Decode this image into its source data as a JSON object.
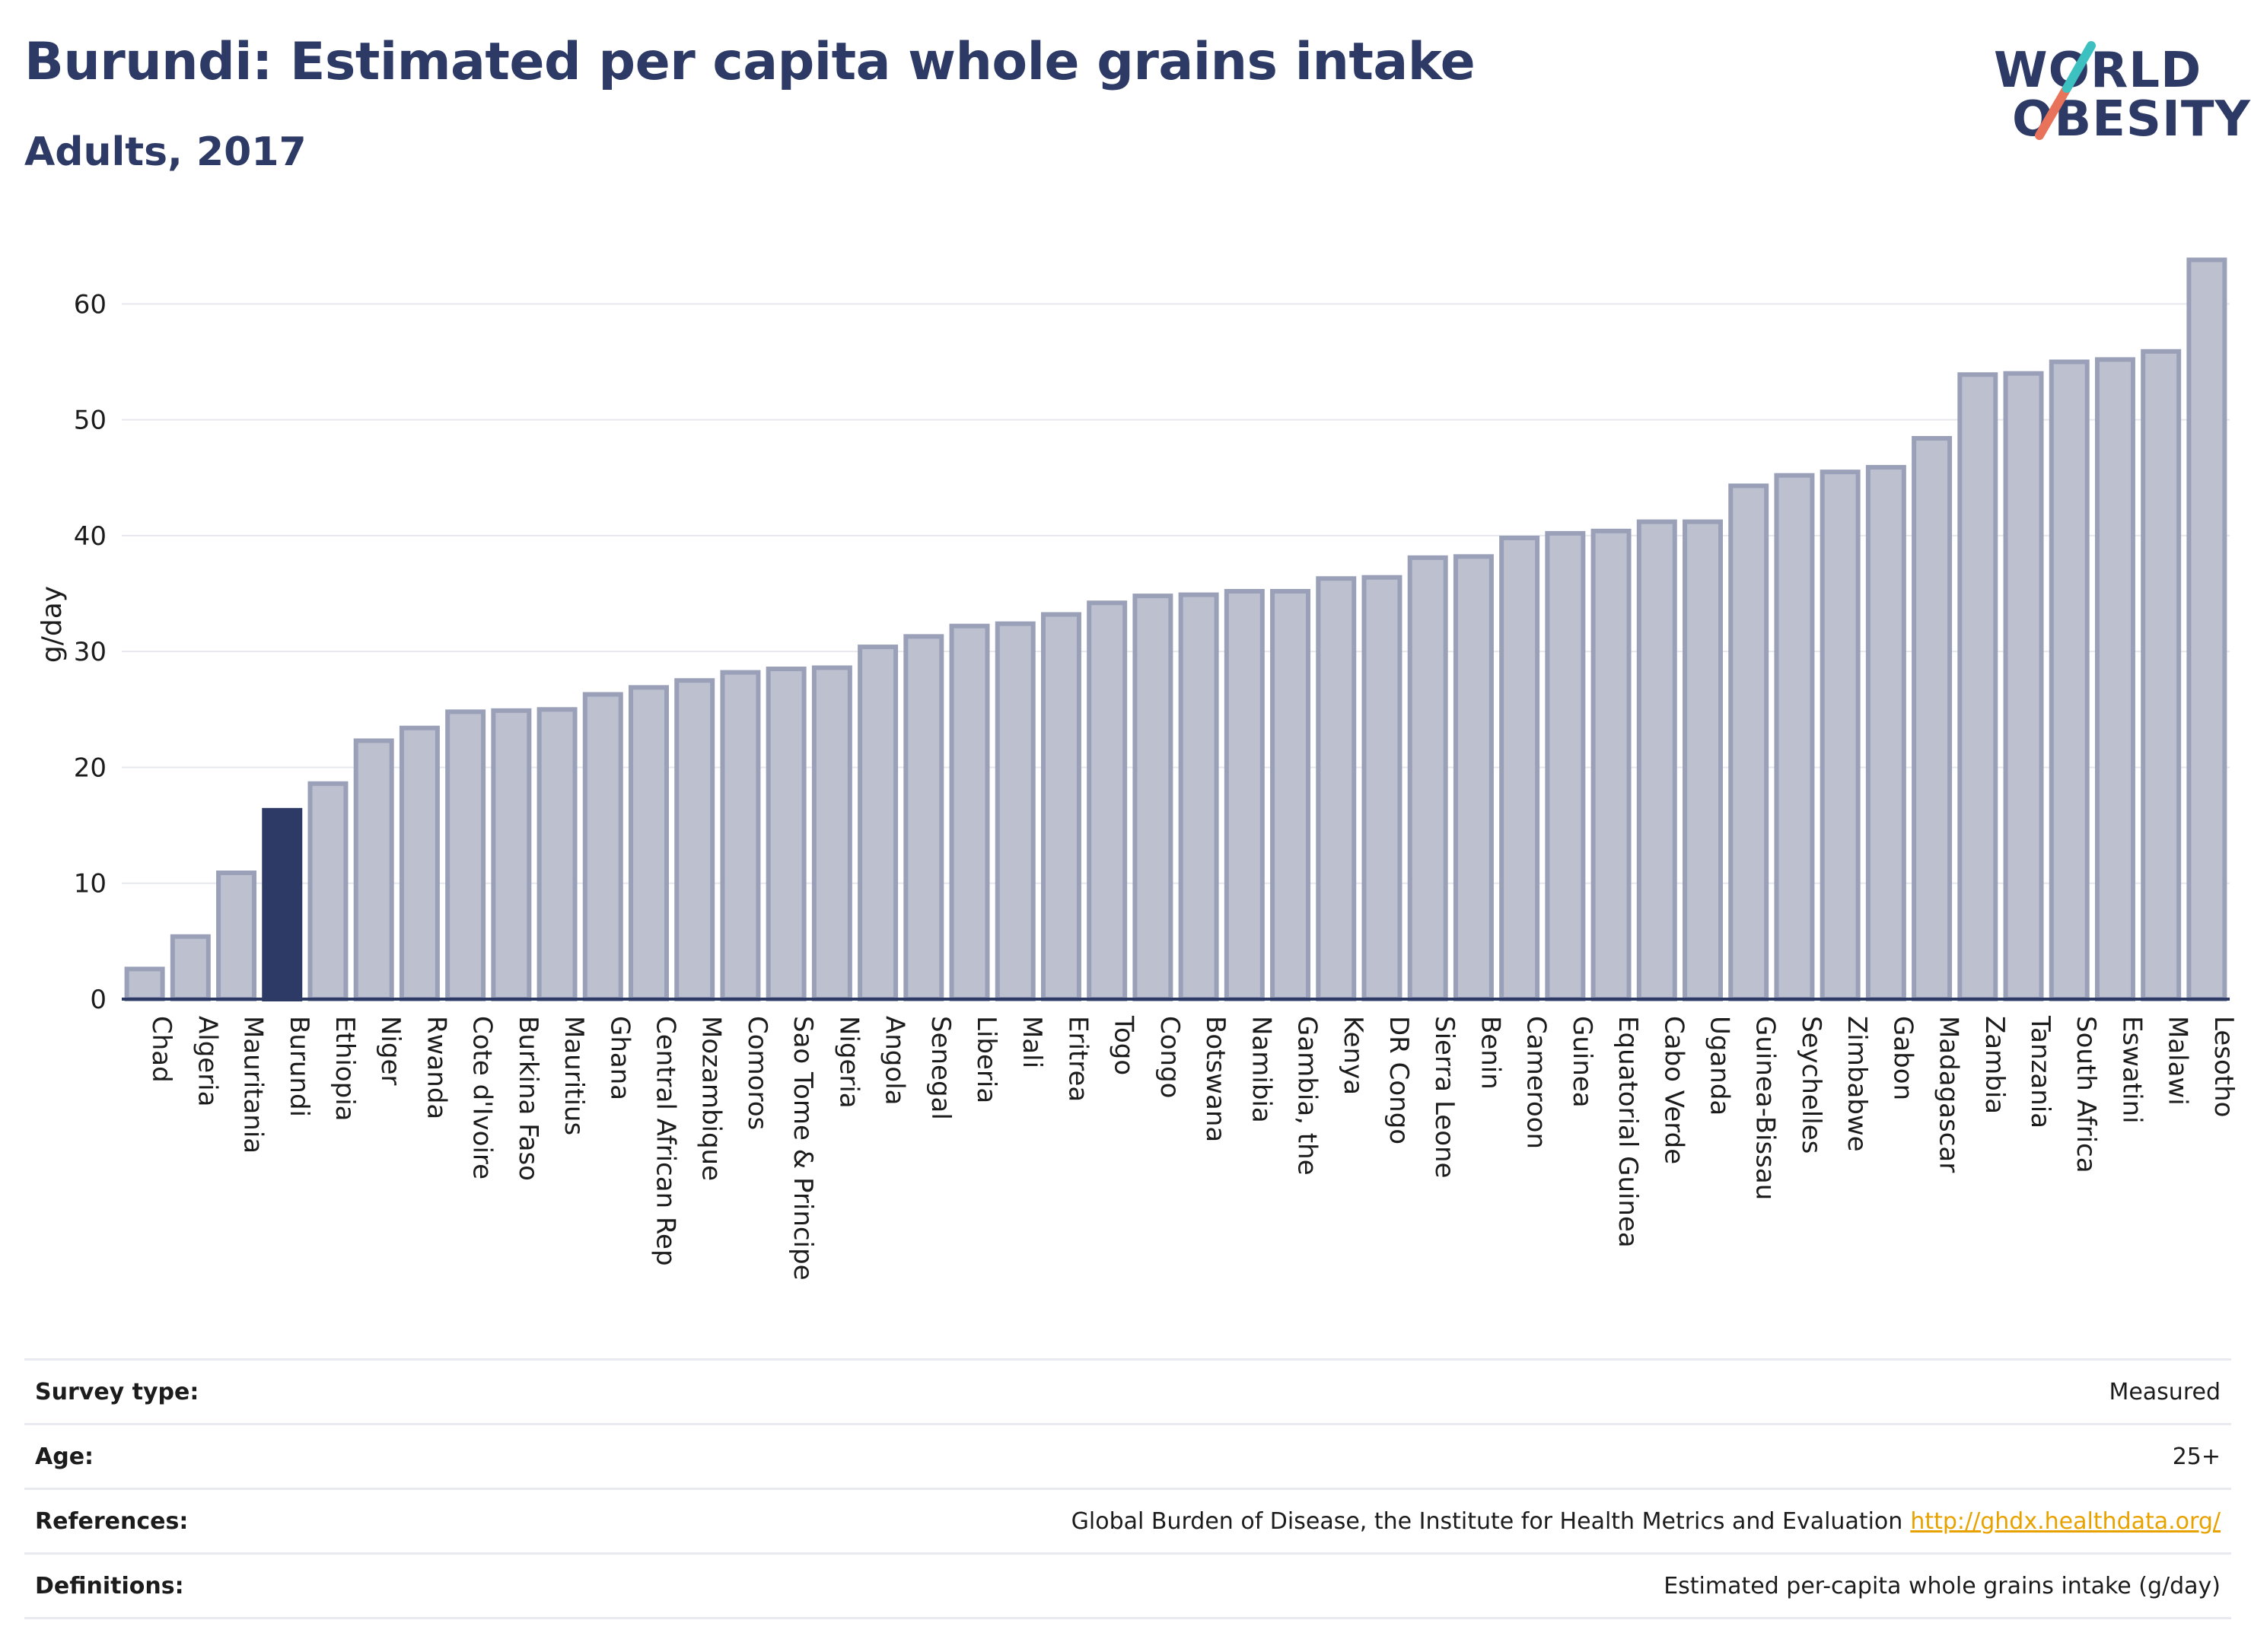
{
  "header": {
    "title": "Burundi: Estimated per capita whole grains intake",
    "subtitle": "Adults, 2017"
  },
  "logo": {
    "line1": "WORLD",
    "line2": "OBESITY",
    "colors": {
      "text": "#2d3a66",
      "slash_top": "#3cc0c0",
      "slash_bottom": "#e8735a"
    }
  },
  "colors": {
    "bar_fill": "#bcc0cf",
    "bar_stroke": "#9aa0b8",
    "highlight_fill": "#2d3a66",
    "axis": "#2d3a66",
    "grid": "#e6e8ee"
  },
  "chart_data": {
    "type": "bar",
    "title": "Burundi: Estimated per capita whole grains intake",
    "subtitle": "Adults, 2017",
    "xlabel": "",
    "ylabel": "g/day",
    "ylim": [
      0,
      66
    ],
    "yticks": [
      0,
      10,
      20,
      30,
      40,
      50,
      60
    ],
    "grid": true,
    "highlight": "Burundi",
    "categories": [
      "Chad",
      "Algeria",
      "Mauritania",
      "Burundi",
      "Ethiopia",
      "Niger",
      "Rwanda",
      "Cote d'Ivoire",
      "Burkina Faso",
      "Mauritius",
      "Ghana",
      "Central African Rep",
      "Mozambique",
      "Comoros",
      "Sao Tome & Principe",
      "Nigeria",
      "Angola",
      "Senegal",
      "Liberia",
      "Mali",
      "Eritrea",
      "Togo",
      "Congo",
      "Botswana",
      "Namibia",
      "Gambia, the",
      "Kenya",
      "DR Congo",
      "Sierra Leone",
      "Benin",
      "Cameroon",
      "Guinea",
      "Equatorial Guinea",
      "Cabo Verde",
      "Uganda",
      "Guinea-Bissau",
      "Seychelles",
      "Zimbabwe",
      "Gabon",
      "Madagascar",
      "Zambia",
      "Tanzania",
      "South Africa",
      "Eswatini",
      "Malawi",
      "Lesotho"
    ],
    "values": [
      2.6,
      5.4,
      10.9,
      16.3,
      18.6,
      22.3,
      23.4,
      24.8,
      24.9,
      25.0,
      26.3,
      26.9,
      27.5,
      28.2,
      28.5,
      28.6,
      30.4,
      31.3,
      32.2,
      32.4,
      33.2,
      34.2,
      34.8,
      34.9,
      35.2,
      35.2,
      36.3,
      36.4,
      38.1,
      38.2,
      39.8,
      40.2,
      40.4,
      41.2,
      41.2,
      44.3,
      45.2,
      45.5,
      45.9,
      48.4,
      53.9,
      54.0,
      55.0,
      55.2,
      55.9,
      63.8
    ]
  },
  "meta": [
    {
      "label": "Survey type:",
      "value": "Measured",
      "link": ""
    },
    {
      "label": "Age:",
      "value": "25+",
      "link": ""
    },
    {
      "label": "References:",
      "value": "Global Burden of Disease, the Institute for Health Metrics and Evaluation",
      "link": "http://ghdx.healthdata.org/"
    },
    {
      "label": "Definitions:",
      "value": "Estimated per-capita whole grains intake (g/day)",
      "link": ""
    }
  ]
}
